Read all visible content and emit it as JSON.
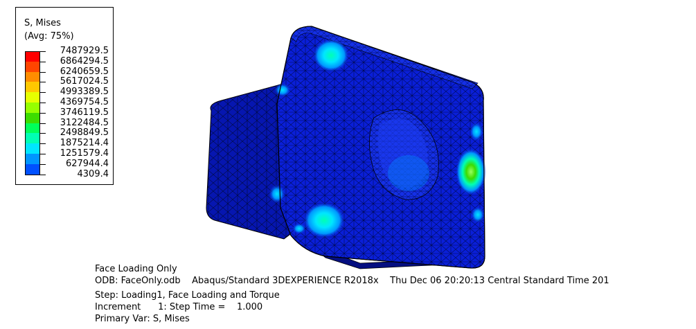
{
  "legend": {
    "title_line1": "S, Mises",
    "title_line2": "(Avg: 75%)",
    "levels": [
      {
        "value": "7487929.5",
        "color": "#ff0000"
      },
      {
        "value": "6864294.5",
        "color": "#ff4500"
      },
      {
        "value": "6240659.5",
        "color": "#ff8c00"
      },
      {
        "value": "5617024.5",
        "color": "#ffc800"
      },
      {
        "value": "4993389.5",
        "color": "#e6ff00"
      },
      {
        "value": "4369754.5",
        "color": "#96ff00"
      },
      {
        "value": "3746119.5",
        "color": "#3cdc00"
      },
      {
        "value": "3122484.5",
        "color": "#00ff5a"
      },
      {
        "value": "2498849.5",
        "color": "#00ffb4"
      },
      {
        "value": "1875214.4",
        "color": "#00e6ff"
      },
      {
        "value": "1251579.4",
        "color": "#0096ff"
      },
      {
        "value": "627944.4",
        "color": "#0050ff"
      },
      {
        "value": "4309.4",
        "color": "#0000ff"
      }
    ]
  },
  "info": {
    "line1": "Face Loading Only",
    "line2": "ODB: FaceOnly.odb    Abaqus/Standard 3DEXPERIENCE R2018x    Thu Dec 06 20:20:13 Central Standard Time 201",
    "line3": "Step: Loading1, Face Loading and Torque",
    "line4": "Increment      1: Step Time =    1.000",
    "line5": "Primary Var: S, Mises"
  },
  "colors": {
    "mesh_base": "#0a1fd8",
    "mesh_dark": "#0616a8",
    "mesh_lines": "#000033",
    "hot_green": "#3cdc00",
    "hot_cyan": "#00e6ff"
  }
}
